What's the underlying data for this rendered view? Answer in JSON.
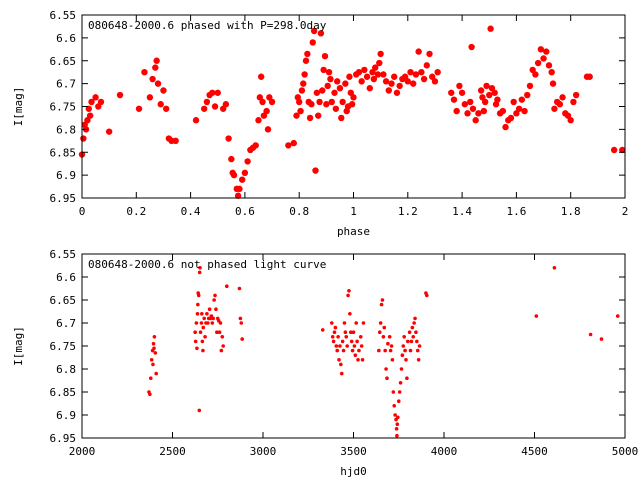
{
  "chart_data": [
    {
      "type": "scatter",
      "title": "080648-2000.6 phased with P=298.0day",
      "xlabel": "phase",
      "ylabel": "I[mag]",
      "xlim": [
        0,
        2
      ],
      "ylim": [
        6.95,
        6.55
      ],
      "y_inverted": true,
      "grid": false,
      "marker": "filled-circle-large",
      "color": "#ff0000",
      "xticks": [
        "0",
        "0.2",
        "0.4",
        "0.6",
        "0.8",
        "1",
        "1.2",
        "1.4",
        "1.6",
        "1.8",
        "2"
      ],
      "yticks": [
        "6.55",
        "6.6",
        "6.65",
        "6.7",
        "6.75",
        "6.8",
        "6.85",
        "6.9",
        "6.95"
      ],
      "points": [
        [
          0.0,
          6.855
        ],
        [
          0.005,
          6.82
        ],
        [
          0.01,
          6.79
        ],
        [
          0.015,
          6.8
        ],
        [
          0.02,
          6.78
        ],
        [
          0.025,
          6.755
        ],
        [
          0.03,
          6.77
        ],
        [
          0.035,
          6.74
        ],
        [
          0.05,
          6.73
        ],
        [
          0.06,
          6.75
        ],
        [
          0.07,
          6.74
        ],
        [
          0.1,
          6.805
        ],
        [
          0.14,
          6.725
        ],
        [
          0.21,
          6.755
        ],
        [
          0.23,
          6.675
        ],
        [
          0.25,
          6.73
        ],
        [
          0.26,
          6.69
        ],
        [
          0.27,
          6.665
        ],
        [
          0.275,
          6.65
        ],
        [
          0.28,
          6.7
        ],
        [
          0.29,
          6.745
        ],
        [
          0.3,
          6.715
        ],
        [
          0.31,
          6.755
        ],
        [
          0.32,
          6.82
        ],
        [
          0.33,
          6.825
        ],
        [
          0.345,
          6.825
        ],
        [
          0.42,
          6.78
        ],
        [
          0.45,
          6.755
        ],
        [
          0.46,
          6.74
        ],
        [
          0.47,
          6.725
        ],
        [
          0.48,
          6.72
        ],
        [
          0.49,
          6.75
        ],
        [
          0.5,
          6.72
        ],
        [
          0.52,
          6.755
        ],
        [
          0.53,
          6.745
        ],
        [
          0.54,
          6.82
        ],
        [
          0.55,
          6.865
        ],
        [
          0.555,
          6.895
        ],
        [
          0.56,
          6.9
        ],
        [
          0.57,
          6.93
        ],
        [
          0.575,
          6.945
        ],
        [
          0.58,
          6.93
        ],
        [
          0.59,
          6.91
        ],
        [
          0.6,
          6.895
        ],
        [
          0.61,
          6.87
        ],
        [
          0.62,
          6.845
        ],
        [
          0.63,
          6.84
        ],
        [
          0.64,
          6.835
        ],
        [
          0.65,
          6.78
        ],
        [
          0.655,
          6.73
        ],
        [
          0.66,
          6.685
        ],
        [
          0.665,
          6.74
        ],
        [
          0.67,
          6.77
        ],
        [
          0.68,
          6.76
        ],
        [
          0.685,
          6.8
        ],
        [
          0.69,
          6.73
        ],
        [
          0.7,
          6.74
        ],
        [
          0.76,
          6.835
        ],
        [
          0.78,
          6.83
        ],
        [
          0.79,
          6.77
        ],
        [
          0.795,
          6.73
        ],
        [
          0.8,
          6.74
        ],
        [
          0.805,
          6.76
        ],
        [
          0.81,
          6.715
        ],
        [
          0.815,
          6.7
        ],
        [
          0.82,
          6.68
        ],
        [
          0.825,
          6.65
        ],
        [
          0.83,
          6.635
        ],
        [
          0.835,
          6.74
        ],
        [
          0.84,
          6.775
        ],
        [
          0.845,
          6.745
        ],
        [
          0.85,
          6.61
        ],
        [
          0.855,
          6.585
        ],
        [
          0.86,
          6.89
        ],
        [
          0.865,
          6.72
        ],
        [
          0.87,
          6.77
        ],
        [
          0.875,
          6.74
        ],
        [
          0.88,
          6.59
        ],
        [
          0.885,
          6.715
        ],
        [
          0.89,
          6.67
        ],
        [
          0.895,
          6.64
        ],
        [
          0.9,
          6.745
        ],
        [
          0.905,
          6.705
        ],
        [
          0.91,
          6.675
        ],
        [
          0.915,
          6.69
        ],
        [
          0.92,
          6.74
        ],
        [
          0.93,
          6.72
        ],
        [
          0.935,
          6.755
        ],
        [
          0.94,
          6.695
        ],
        [
          0.95,
          6.71
        ],
        [
          0.955,
          6.775
        ],
        [
          0.96,
          6.74
        ],
        [
          0.97,
          6.7
        ],
        [
          0.975,
          6.76
        ],
        [
          0.98,
          6.75
        ],
        [
          0.985,
          6.685
        ],
        [
          0.99,
          6.72
        ],
        [
          0.995,
          6.745
        ],
        [
          1.0,
          6.73
        ],
        [
          1.01,
          6.68
        ],
        [
          1.02,
          6.675
        ],
        [
          1.03,
          6.695
        ],
        [
          1.04,
          6.67
        ],
        [
          1.05,
          6.685
        ],
        [
          1.06,
          6.71
        ],
        [
          1.07,
          6.675
        ],
        [
          1.075,
          6.69
        ],
        [
          1.08,
          6.665
        ],
        [
          1.09,
          6.68
        ],
        [
          1.095,
          6.655
        ],
        [
          1.1,
          6.635
        ],
        [
          1.11,
          6.68
        ],
        [
          1.12,
          6.695
        ],
        [
          1.13,
          6.715
        ],
        [
          1.14,
          6.7
        ],
        [
          1.15,
          6.685
        ],
        [
          1.16,
          6.72
        ],
        [
          1.17,
          6.705
        ],
        [
          1.18,
          6.69
        ],
        [
          1.19,
          6.685
        ],
        [
          1.2,
          6.695
        ],
        [
          1.21,
          6.675
        ],
        [
          1.22,
          6.7
        ],
        [
          1.23,
          6.68
        ],
        [
          1.24,
          6.63
        ],
        [
          1.25,
          6.675
        ],
        [
          1.26,
          6.69
        ],
        [
          1.27,
          6.66
        ],
        [
          1.28,
          6.635
        ],
        [
          1.29,
          6.685
        ],
        [
          1.3,
          6.695
        ],
        [
          1.31,
          6.675
        ],
        [
          1.36,
          6.72
        ],
        [
          1.37,
          6.735
        ],
        [
          1.38,
          6.76
        ],
        [
          1.39,
          6.705
        ],
        [
          1.4,
          6.72
        ],
        [
          1.41,
          6.745
        ],
        [
          1.42,
          6.765
        ],
        [
          1.43,
          6.74
        ],
        [
          1.435,
          6.62
        ],
        [
          1.44,
          6.755
        ],
        [
          1.45,
          6.78
        ],
        [
          1.46,
          6.765
        ],
        [
          1.47,
          6.715
        ],
        [
          1.475,
          6.73
        ],
        [
          1.48,
          6.76
        ],
        [
          1.485,
          6.74
        ],
        [
          1.49,
          6.705
        ],
        [
          1.5,
          6.725
        ],
        [
          1.505,
          6.58
        ],
        [
          1.51,
          6.71
        ],
        [
          1.52,
          6.72
        ],
        [
          1.525,
          6.745
        ],
        [
          1.53,
          6.735
        ],
        [
          1.54,
          6.765
        ],
        [
          1.55,
          6.76
        ],
        [
          1.56,
          6.795
        ],
        [
          1.57,
          6.78
        ],
        [
          1.58,
          6.775
        ],
        [
          1.59,
          6.74
        ],
        [
          1.6,
          6.765
        ],
        [
          1.61,
          6.755
        ],
        [
          1.62,
          6.735
        ],
        [
          1.63,
          6.76
        ],
        [
          1.64,
          6.725
        ],
        [
          1.65,
          6.705
        ],
        [
          1.66,
          6.67
        ],
        [
          1.67,
          6.68
        ],
        [
          1.68,
          6.655
        ],
        [
          1.69,
          6.625
        ],
        [
          1.7,
          6.645
        ],
        [
          1.71,
          6.63
        ],
        [
          1.72,
          6.66
        ],
        [
          1.73,
          6.675
        ],
        [
          1.735,
          6.7
        ],
        [
          1.74,
          6.755
        ],
        [
          1.75,
          6.74
        ],
        [
          1.76,
          6.745
        ],
        [
          1.77,
          6.73
        ],
        [
          1.78,
          6.765
        ],
        [
          1.79,
          6.77
        ],
        [
          1.8,
          6.78
        ],
        [
          1.81,
          6.74
        ],
        [
          1.82,
          6.725
        ],
        [
          1.86,
          6.685
        ],
        [
          1.87,
          6.685
        ],
        [
          1.96,
          6.845
        ],
        [
          1.99,
          6.845
        ]
      ]
    },
    {
      "type": "scatter",
      "title": "080648-2000.6 not phased light curve",
      "xlabel": "hjd0",
      "ylabel": "I[mag]",
      "xlim": [
        2000,
        5000
      ],
      "ylim": [
        6.95,
        6.55
      ],
      "y_inverted": true,
      "grid": false,
      "marker": "small-dot",
      "color": "#ff0000",
      "xticks": [
        "2000",
        "2500",
        "3000",
        "3500",
        "4000",
        "4500",
        "5000"
      ],
      "yticks": [
        "6.55",
        "6.6",
        "6.65",
        "6.7",
        "6.75",
        "6.8",
        "6.85",
        "6.9",
        "6.95"
      ],
      "points": [
        [
          2370,
          6.85
        ],
        [
          2375,
          6.855
        ],
        [
          2380,
          6.82
        ],
        [
          2385,
          6.78
        ],
        [
          2390,
          6.76
        ],
        [
          2395,
          6.745
        ],
        [
          2400,
          6.73
        ],
        [
          2405,
          6.765
        ],
        [
          2410,
          6.81
        ],
        [
          2392,
          6.79
        ],
        [
          2398,
          6.755
        ],
        [
          2625,
          6.72
        ],
        [
          2628,
          6.74
        ],
        [
          2632,
          6.7
        ],
        [
          2635,
          6.755
        ],
        [
          2638,
          6.68
        ],
        [
          2640,
          6.66
        ],
        [
          2642,
          6.635
        ],
        [
          2645,
          6.64
        ],
        [
          2648,
          6.89
        ],
        [
          2650,
          6.59
        ],
        [
          2652,
          6.58
        ],
        [
          2655,
          6.72
        ],
        [
          2660,
          6.7
        ],
        [
          2662,
          6.68
        ],
        [
          2665,
          6.74
        ],
        [
          2668,
          6.76
        ],
        [
          2670,
          6.71
        ],
        [
          2675,
          6.69
        ],
        [
          2680,
          6.73
        ],
        [
          2685,
          6.7
        ],
        [
          2690,
          6.68
        ],
        [
          2695,
          6.7
        ],
        [
          2700,
          6.69
        ],
        [
          2705,
          6.67
        ],
        [
          2710,
          6.69
        ],
        [
          2715,
          6.685
        ],
        [
          2720,
          6.7
        ],
        [
          2725,
          6.69
        ],
        [
          2730,
          6.65
        ],
        [
          2735,
          6.64
        ],
        [
          2740,
          6.67
        ],
        [
          2745,
          6.72
        ],
        [
          2750,
          6.69
        ],
        [
          2755,
          6.695
        ],
        [
          2760,
          6.72
        ],
        [
          2765,
          6.7
        ],
        [
          2770,
          6.76
        ],
        [
          2775,
          6.73
        ],
        [
          2780,
          6.75
        ],
        [
          2800,
          6.62
        ],
        [
          2870,
          6.625
        ],
        [
          2875,
          6.69
        ],
        [
          2880,
          6.7
        ],
        [
          2885,
          6.735
        ],
        [
          3330,
          6.715
        ],
        [
          3380,
          6.7
        ],
        [
          3385,
          6.73
        ],
        [
          3390,
          6.74
        ],
        [
          3395,
          6.72
        ],
        [
          3400,
          6.71
        ],
        [
          3405,
          6.75
        ],
        [
          3410,
          6.76
        ],
        [
          3415,
          6.73
        ],
        [
          3420,
          6.78
        ],
        [
          3425,
          6.75
        ],
        [
          3430,
          6.79
        ],
        [
          3435,
          6.81
        ],
        [
          3440,
          6.74
        ],
        [
          3445,
          6.76
        ],
        [
          3450,
          6.7
        ],
        [
          3455,
          6.72
        ],
        [
          3460,
          6.73
        ],
        [
          3465,
          6.75
        ],
        [
          3470,
          6.64
        ],
        [
          3475,
          6.63
        ],
        [
          3480,
          6.68
        ],
        [
          3485,
          6.72
        ],
        [
          3490,
          6.74
        ],
        [
          3495,
          6.76
        ],
        [
          3500,
          6.72
        ],
        [
          3505,
          6.75
        ],
        [
          3510,
          6.77
        ],
        [
          3515,
          6.7
        ],
        [
          3520,
          6.74
        ],
        [
          3525,
          6.78
        ],
        [
          3530,
          6.76
        ],
        [
          3540,
          6.73
        ],
        [
          3545,
          6.75
        ],
        [
          3550,
          6.78
        ],
        [
          3555,
          6.7
        ],
        [
          3640,
          6.76
        ],
        [
          3645,
          6.72
        ],
        [
          3650,
          6.7
        ],
        [
          3655,
          6.66
        ],
        [
          3660,
          6.65
        ],
        [
          3665,
          6.73
        ],
        [
          3670,
          6.71
        ],
        [
          3675,
          6.76
        ],
        [
          3680,
          6.8
        ],
        [
          3685,
          6.82
        ],
        [
          3690,
          6.745
        ],
        [
          3700,
          6.73
        ],
        [
          3705,
          6.76
        ],
        [
          3710,
          6.75
        ],
        [
          3715,
          6.78
        ],
        [
          3720,
          6.85
        ],
        [
          3725,
          6.88
        ],
        [
          3730,
          6.9
        ],
        [
          3735,
          6.91
        ],
        [
          3738,
          6.93
        ],
        [
          3740,
          6.945
        ],
        [
          3742,
          6.92
        ],
        [
          3745,
          6.905
        ],
        [
          3750,
          6.87
        ],
        [
          3755,
          6.85
        ],
        [
          3760,
          6.83
        ],
        [
          3765,
          6.8
        ],
        [
          3770,
          6.77
        ],
        [
          3775,
          6.75
        ],
        [
          3780,
          6.73
        ],
        [
          3785,
          6.76
        ],
        [
          3790,
          6.78
        ],
        [
          3795,
          6.82
        ],
        [
          3800,
          6.74
        ],
        [
          3810,
          6.72
        ],
        [
          3815,
          6.76
        ],
        [
          3820,
          6.74
        ],
        [
          3825,
          6.71
        ],
        [
          3830,
          6.73
        ],
        [
          3835,
          6.7
        ],
        [
          3840,
          6.69
        ],
        [
          3845,
          6.72
        ],
        [
          3850,
          6.74
        ],
        [
          3855,
          6.76
        ],
        [
          3860,
          6.78
        ],
        [
          3865,
          6.75
        ],
        [
          3900,
          6.635
        ],
        [
          3905,
          6.64
        ],
        [
          4510,
          6.685
        ],
        [
          4610,
          6.58
        ],
        [
          4810,
          6.725
        ],
        [
          4870,
          6.735
        ],
        [
          4960,
          6.685
        ]
      ]
    }
  ]
}
